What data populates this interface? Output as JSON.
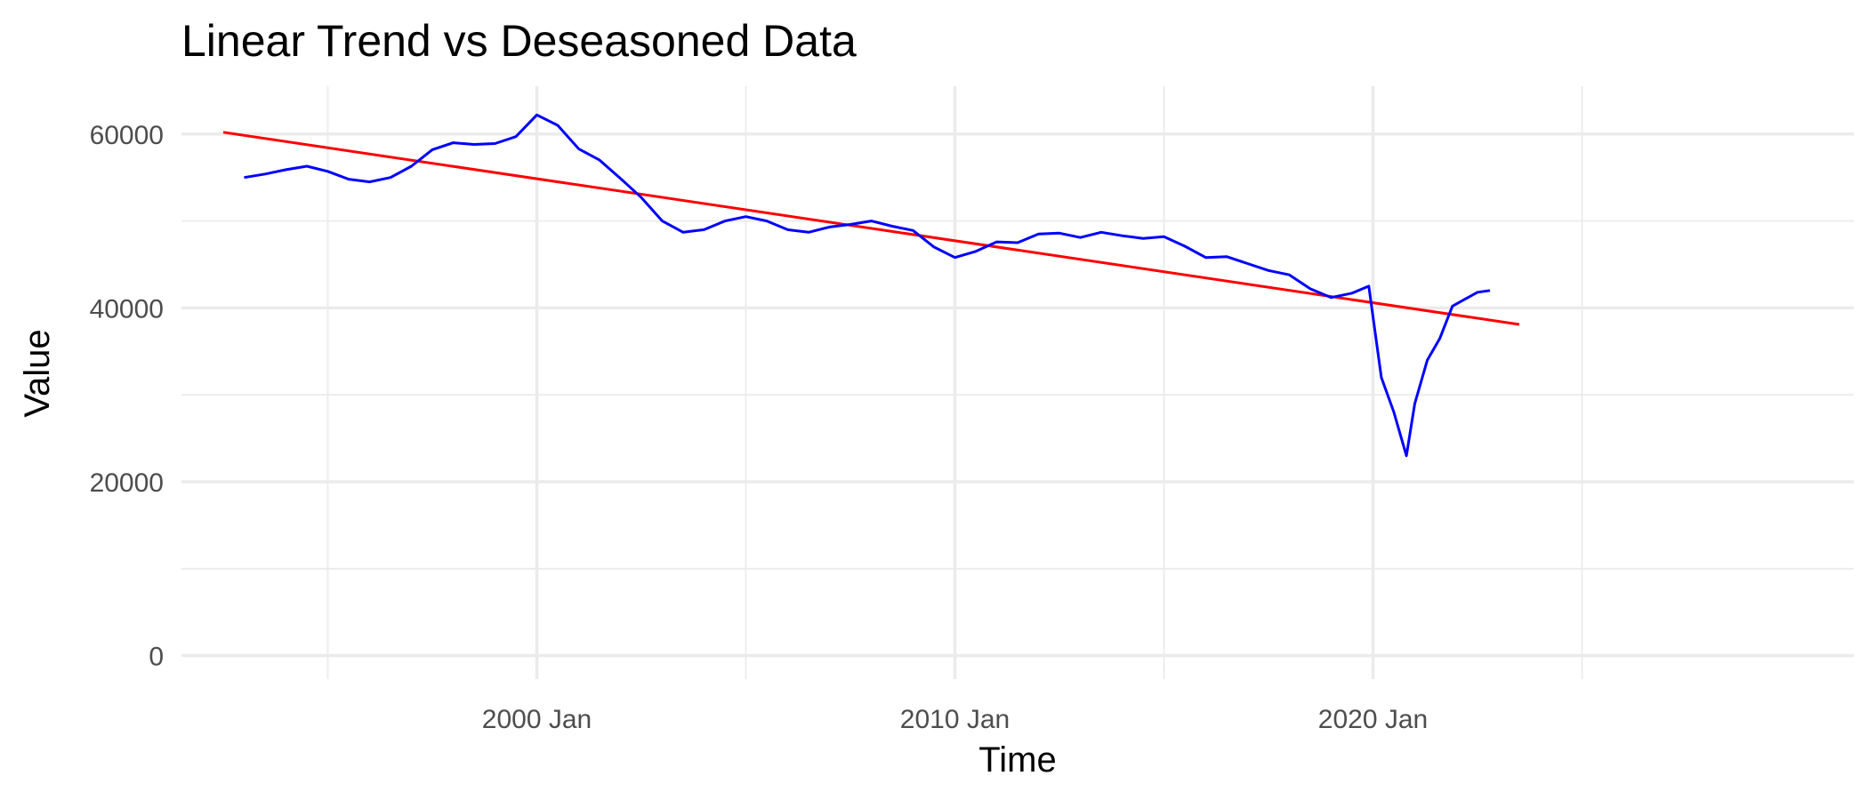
{
  "chart_data": {
    "type": "line",
    "title": "Linear Trend vs Deseasoned Data",
    "xlabel": "Time",
    "ylabel": "Value",
    "xlim": [
      1991.5,
      2031.5
    ],
    "ylim": [
      -2700,
      65500
    ],
    "x_ticks": [
      {
        "value": 2000,
        "label": "2000 Jan"
      },
      {
        "value": 2010,
        "label": "2010 Jan"
      },
      {
        "value": 2020,
        "label": "2020 Jan"
      }
    ],
    "x_minor_ticks": [
      1995,
      2005,
      2015,
      2025
    ],
    "y_ticks": [
      {
        "value": 0,
        "label": "0"
      },
      {
        "value": 20000,
        "label": "20000"
      },
      {
        "value": 40000,
        "label": "40000"
      },
      {
        "value": 60000,
        "label": "60000"
      }
    ],
    "y_minor_ticks": [
      10000,
      30000,
      50000
    ],
    "grid": true,
    "legend": "none",
    "series": [
      {
        "color": "#ff0000",
        "x": [
          1992.5,
          2023.5
        ],
        "y": [
          60200,
          38100
        ]
      },
      {
        "color": "#0000ff",
        "x": [
          1993.0,
          1993.5,
          1994.0,
          1994.5,
          1995.0,
          1995.5,
          1996.0,
          1996.5,
          1997.0,
          1997.5,
          1998.0,
          1998.5,
          1999.0,
          1999.5,
          2000.0,
          2000.5,
          2001.0,
          2001.5,
          2002.0,
          2002.5,
          2003.0,
          2003.5,
          2004.0,
          2004.5,
          2005.0,
          2005.5,
          2006.0,
          2006.5,
          2007.0,
          2007.5,
          2008.0,
          2008.5,
          2009.0,
          2009.5,
          2010.0,
          2010.5,
          2011.0,
          2011.5,
          2012.0,
          2012.5,
          2013.0,
          2013.5,
          2014.0,
          2014.5,
          2015.0,
          2015.5,
          2016.0,
          2016.5,
          2017.0,
          2017.5,
          2018.0,
          2018.5,
          2019.0,
          2019.5,
          2019.9,
          2020.2,
          2020.5,
          2020.8,
          2021.0,
          2021.3,
          2021.6,
          2021.9,
          2022.2,
          2022.5,
          2022.8
        ],
        "y": [
          55000,
          55400,
          55900,
          56300,
          55700,
          54800,
          54500,
          55000,
          56300,
          58200,
          59000,
          58800,
          58900,
          59700,
          62200,
          61000,
          58300,
          57000,
          54900,
          52700,
          50000,
          48700,
          49000,
          50000,
          50500,
          50000,
          49000,
          48700,
          49300,
          49600,
          50000,
          49400,
          48900,
          47000,
          45800,
          46500,
          47600,
          47500,
          48500,
          48600,
          48100,
          48700,
          48300,
          48000,
          48200,
          47100,
          45800,
          45900,
          45100,
          44300,
          43800,
          42200,
          41200,
          41700,
          42500,
          32000,
          28000,
          23000,
          29000,
          34000,
          36500,
          40200,
          41000,
          41800,
          42000
        ]
      }
    ]
  }
}
